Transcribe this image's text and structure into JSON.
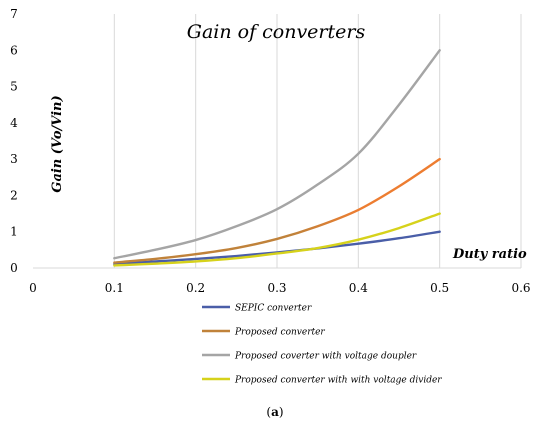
{
  "chart_data": {
    "type": "line",
    "title": "Gain of converters",
    "xlabel": "Duty ratio",
    "ylabel": "Gain (Vo/Vin)",
    "xlim": [
      0,
      0.6
    ],
    "ylim": [
      0,
      7
    ],
    "x_ticks": [
      "0",
      "0.1",
      "0.2",
      "0.3",
      "0.4",
      "0.5",
      "0.6"
    ],
    "y_ticks": [
      "0",
      "1",
      "2",
      "3",
      "4",
      "5",
      "6",
      "7"
    ],
    "grid": "vertical",
    "legend_position": "bottom",
    "x": [
      0.1,
      0.15,
      0.2,
      0.25,
      0.3,
      0.35,
      0.4,
      0.45,
      0.5
    ],
    "series": [
      {
        "name": "SEPIC converter",
        "color": "#4a5ea8",
        "values": [
          0.11,
          0.18,
          0.25,
          0.33,
          0.43,
          0.54,
          0.67,
          0.82,
          1.0
        ]
      },
      {
        "name": "Proposed converter",
        "color": "#c0823a",
        "end_color": "#ed7d31",
        "values": [
          0.15,
          0.25,
          0.38,
          0.55,
          0.8,
          1.15,
          1.6,
          2.25,
          3.0
        ]
      },
      {
        "name": "Proposed coverter with voltage doupler",
        "color": "#a5a5a5",
        "values": [
          0.27,
          0.5,
          0.77,
          1.15,
          1.62,
          2.3,
          3.15,
          4.5,
          6.0
        ]
      },
      {
        "name": "Proposed converter with with voltage divider",
        "color": "#d6d21b",
        "values": [
          0.07,
          0.12,
          0.18,
          0.27,
          0.4,
          0.55,
          0.78,
          1.1,
          1.5
        ]
      }
    ]
  },
  "caption": {
    "open": "(",
    "label": "a",
    "close": ")"
  }
}
